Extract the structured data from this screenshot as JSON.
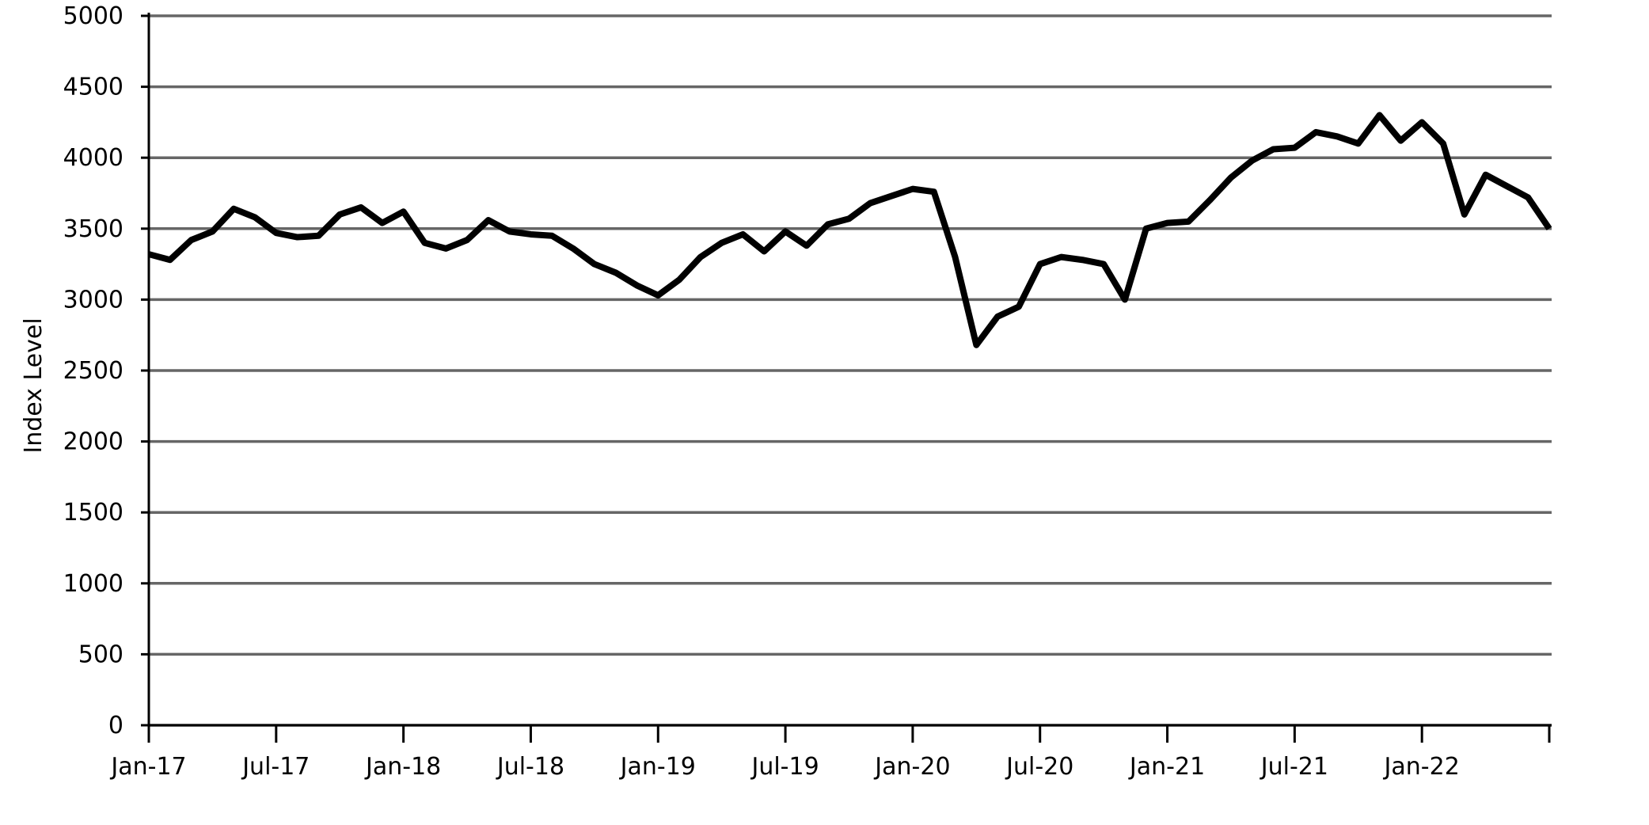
{
  "chart_data": {
    "type": "line",
    "y_label": "Index Level",
    "x": [
      "2017-01",
      "2017-02",
      "2017-03",
      "2017-04",
      "2017-05",
      "2017-06",
      "2017-07",
      "2017-08",
      "2017-09",
      "2017-10",
      "2017-11",
      "2017-12",
      "2018-01",
      "2018-02",
      "2018-03",
      "2018-04",
      "2018-05",
      "2018-06",
      "2018-07",
      "2018-08",
      "2018-09",
      "2018-10",
      "2018-11",
      "2018-12",
      "2019-01",
      "2019-02",
      "2019-03",
      "2019-04",
      "2019-05",
      "2019-06",
      "2019-07",
      "2019-08",
      "2019-09",
      "2019-10",
      "2019-11",
      "2019-12",
      "2020-01",
      "2020-02",
      "2020-03",
      "2020-04",
      "2020-05",
      "2020-06",
      "2020-07",
      "2020-08",
      "2020-09",
      "2020-10",
      "2020-11",
      "2020-12",
      "2021-01",
      "2021-02",
      "2021-03",
      "2021-04",
      "2021-05",
      "2021-06",
      "2021-07",
      "2021-08",
      "2021-09",
      "2021-10",
      "2021-11",
      "2021-12",
      "2022-01",
      "2022-02",
      "2022-03",
      "2022-04",
      "2022-05",
      "2022-06",
      "2022-07"
    ],
    "series": [
      {
        "name": "Index Level",
        "color": "#000000",
        "values": [
          3320,
          3280,
          3420,
          3480,
          3640,
          3580,
          3470,
          3440,
          3450,
          3600,
          3650,
          3540,
          3620,
          3400,
          3360,
          3420,
          3560,
          3480,
          3460,
          3450,
          3360,
          3250,
          3190,
          3100,
          3030,
          3140,
          3300,
          3400,
          3460,
          3340,
          3480,
          3380,
          3530,
          3570,
          3680,
          3730,
          3780,
          3760,
          3300,
          2680,
          2880,
          2950,
          3250,
          3300,
          3280,
          3250,
          3000,
          3500,
          3540,
          3550,
          3700,
          3860,
          3980,
          4060,
          4070,
          4180,
          4150,
          4100,
          4300,
          4120,
          4250,
          4100,
          3600,
          3880,
          3800,
          3720,
          3500
        ]
      }
    ],
    "xlim": [
      "2017-01",
      "2022-07"
    ],
    "xticks": [
      {
        "value": "2017-01",
        "label": "Jan-17"
      },
      {
        "value": "2017-07",
        "label": "Jul-17"
      },
      {
        "value": "2018-01",
        "label": "Jan-18"
      },
      {
        "value": "2018-07",
        "label": "Jul-18"
      },
      {
        "value": "2019-01",
        "label": "Jan-19"
      },
      {
        "value": "2019-07",
        "label": "Jul-19"
      },
      {
        "value": "2020-01",
        "label": "Jan-20"
      },
      {
        "value": "2020-07",
        "label": "Jul-20"
      },
      {
        "value": "2021-01",
        "label": "Jan-21"
      },
      {
        "value": "2021-07",
        "label": "Jul-21"
      },
      {
        "value": "2022-01",
        "label": "Jan-22"
      }
    ],
    "ylim": [
      0,
      5000
    ],
    "yticks": [
      0,
      500,
      1000,
      1500,
      2000,
      2500,
      3000,
      3500,
      4000,
      4500,
      5000
    ],
    "grid": true
  }
}
